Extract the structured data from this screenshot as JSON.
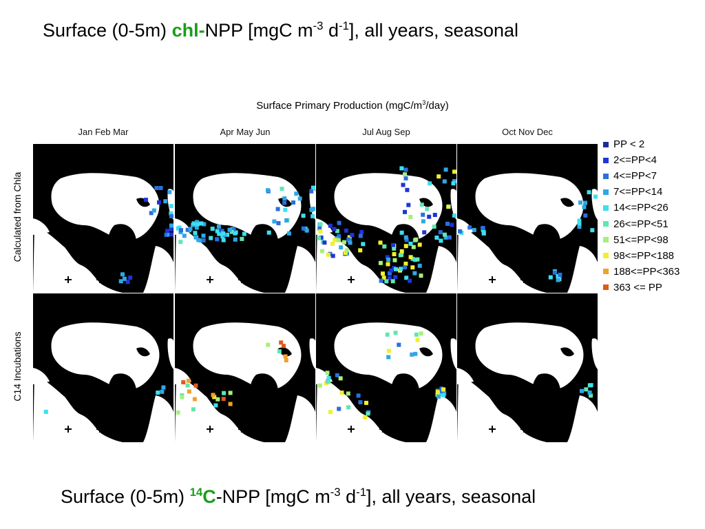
{
  "slide": {
    "title": {
      "prefix": "Surface (0-5m) ",
      "highlight": "chl-",
      "middle": "NPP [mgC m",
      "sup1": "-3",
      "middle2": " d",
      "sup2": "-1",
      "suffix": "], all years, seasonal"
    },
    "subtitle": {
      "prefix": "Surface (0-5m) ",
      "sup_iso": "14",
      "highlight": "C",
      "middle": "-NPP [mgC m",
      "sup1": "-3",
      "middle2": " d",
      "sup2": "-1",
      "suffix": "], all years, seasonal"
    }
  },
  "figure": {
    "title_main": "Surface Primary Production (mgC/m",
    "title_sup": "3",
    "title_end": "/day)",
    "seasons": [
      "Jan Feb Mar",
      "Apr May Jun",
      "Jul Aug Sep",
      "Oct Nov Dec"
    ],
    "row_labels": [
      "Calculated from Chla",
      "C14 Incubations"
    ]
  },
  "legend": [
    {
      "label": "PP < 2",
      "color": "#1c2c9c"
    },
    {
      "label": "2<=PP<4",
      "color": "#1f34d6"
    },
    {
      "label": "4<=PP<7",
      "color": "#2a6fe0"
    },
    {
      "label": "7<=PP<14",
      "color": "#2fa7e6"
    },
    {
      "label": "14<=PP<26",
      "color": "#3de0ee"
    },
    {
      "label": "26<=PP<51",
      "color": "#5ee8b0"
    },
    {
      "label": "51<=PP<98",
      "color": "#a6f07a"
    },
    {
      "label": "98<=PP<188",
      "color": "#f2f02a"
    },
    {
      "label": "188<=PP<363",
      "color": "#f0a22a"
    },
    {
      "label": "363 <= PP",
      "color": "#e05a1e"
    }
  ]
}
